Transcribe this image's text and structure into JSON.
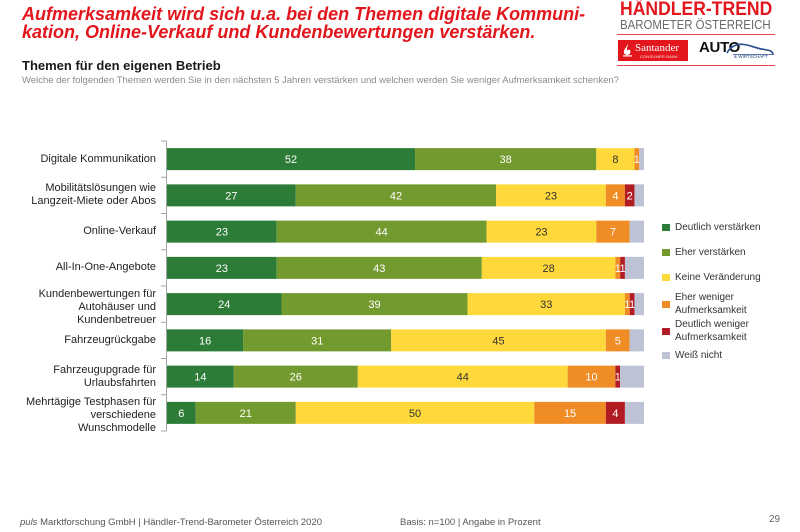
{
  "page": {
    "title": "Aufmerksamkeit wird sich u.a. bei den Themen digitale Kommuni-\nkation, Online-Verkauf und Kundenbewertungen verstärken."
  },
  "logo": {
    "title": "HÄNDLER-TREND",
    "subtitle": "BAROMETER ÖSTERREICH",
    "partner1": "Santander",
    "partner1_sub": "CONSUMER BANK",
    "partner2": "AUTO",
    "partner2_sub": "& WIRTSCHAFT",
    "brand_color": "#E2161C"
  },
  "chart_data": {
    "type": "bar",
    "orientation": "horizontal",
    "stacked": true,
    "title": "Themen für den eigenen Betrieb",
    "subtitle": "Welche der folgenden Themen werden Sie in den nächsten 5 Jahren verstärken und welchen werden Sie weniger Aufmerksamkeit schenken?",
    "xlabel": "",
    "ylabel": "",
    "unit": "%",
    "xlim": [
      0,
      100
    ],
    "grid": false,
    "legend": "right",
    "categories": [
      "Digitale Kommunikation",
      "Mobilitätslösungen wie\nLangzeit-Miete oder Abos",
      "Online-Verkauf",
      "All-In-One-Angebote",
      "Kundenbewertungen für\nAutohäuser und\nKundenbetreuer",
      "Fahrzeugrückgabe",
      "Fahrzeugupgrade für\nUrlaubsfahrten",
      "Mehrtägige Testphasen für\nverschiedene\nWunschmodelle"
    ],
    "series": [
      {
        "name": "Deutlich verstärken",
        "color": "#2C7B37",
        "label_color": "#ffffff",
        "values": [
          52,
          27,
          23,
          23,
          24,
          16,
          14,
          6
        ]
      },
      {
        "name": "Eher verstärken",
        "color": "#739A2E",
        "label_color": "#ffffff",
        "values": [
          38,
          42,
          44,
          43,
          39,
          31,
          26,
          21
        ]
      },
      {
        "name": "Keine Veränderung",
        "color": "#FFD93B",
        "label_color": "#333333",
        "values": [
          8,
          23,
          23,
          28,
          33,
          45,
          44,
          50
        ]
      },
      {
        "name": "Eher weniger Aufmerksamkeit",
        "color": "#F08C26",
        "label_color": "#ffffff",
        "values": [
          1,
          4,
          7,
          1,
          1,
          5,
          10,
          15
        ]
      },
      {
        "name": "Deutlich weniger Aufmerksamkeit",
        "color": "#B11C24",
        "label_color": "#ffffff",
        "values": [
          0,
          2,
          0,
          1,
          1,
          0,
          1,
          4
        ]
      },
      {
        "name": "Weiß nicht",
        "color": "#BDC3D4",
        "label_color": "#333333",
        "labels_shown": false,
        "values": [
          1,
          2,
          3,
          4,
          2,
          3,
          5,
          4
        ]
      }
    ]
  },
  "footer": {
    "company_prefix": "puls",
    "company_rest": " Marktforschung GmbH | Händler-Trend-Barometer Österreich 2020",
    "basis": "Basis: n=100 | Angabe in Prozent",
    "page_number": "29"
  }
}
